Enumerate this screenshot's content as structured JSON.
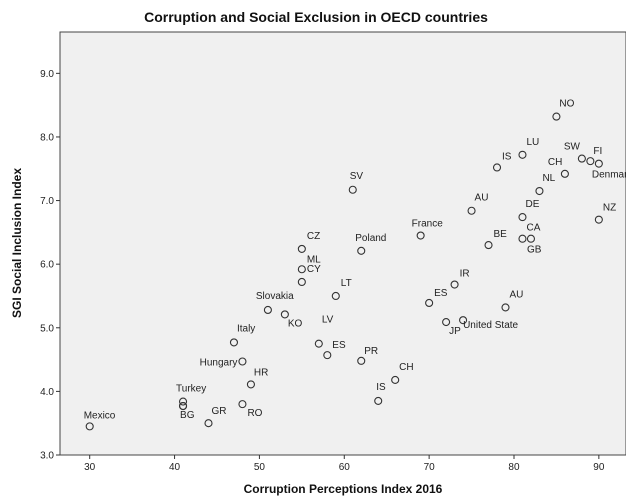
{
  "chart_data": {
    "type": "scatter",
    "title": "Corruption and Social Exclusion in OECD countries",
    "xlabel": "Corruption Perceptions Index  2016",
    "ylabel": "SGI Social Inclusion Index",
    "xlim": [
      26.5,
      93.2
    ],
    "ylim": [
      3.0,
      9.65
    ],
    "xticks": [
      30,
      40,
      50,
      60,
      70,
      80,
      90
    ],
    "yticks": [
      3.0,
      4.0,
      5.0,
      6.0,
      7.0,
      8.0,
      9.0
    ],
    "xtick_labels": [
      "30",
      "40",
      "50",
      "60",
      "70",
      "80",
      "90"
    ],
    "ytick_labels": [
      "3.0",
      "4.0",
      "5.0",
      "6.0",
      "7.0",
      "8.0",
      "9.0"
    ],
    "grid": false,
    "plot_background": "#f0f0f0",
    "marker_color": "#333333",
    "points": [
      {
        "label": "Mexico",
        "x": 30,
        "y": 3.45
      },
      {
        "label": "Turkey",
        "x": 41,
        "y": 3.84
      },
      {
        "label": "",
        "x": 41,
        "y": 3.77
      },
      {
        "label": "BG",
        "x": 41,
        "y": 3.77
      },
      {
        "label": "GR",
        "x": 44,
        "y": 3.5
      },
      {
        "label": "RO",
        "x": 48,
        "y": 3.8
      },
      {
        "label": "Hungary",
        "x": 48,
        "y": 4.47
      },
      {
        "label": "HR",
        "x": 49,
        "y": 4.11
      },
      {
        "label": "Italy",
        "x": 47,
        "y": 4.77
      },
      {
        "label": "Slovakia",
        "x": 51,
        "y": 5.28
      },
      {
        "label": "KO",
        "x": 53,
        "y": 5.21
      },
      {
        "label": "CZ",
        "x": 55,
        "y": 6.24
      },
      {
        "label": "ML",
        "x": 55,
        "y": 5.92
      },
      {
        "label": "CY",
        "x": 55,
        "y": 5.72
      },
      {
        "label": "LV",
        "x": 57,
        "y": 4.75
      },
      {
        "label": "ES",
        "x": 58,
        "y": 4.57
      },
      {
        "label": "LT",
        "x": 59,
        "y": 5.5
      },
      {
        "label": "SV",
        "x": 61,
        "y": 7.17
      },
      {
        "label": "Poland",
        "x": 62,
        "y": 6.21
      },
      {
        "label": "PR",
        "x": 62,
        "y": 4.48
      },
      {
        "label": "IS",
        "x": 64,
        "y": 3.85
      },
      {
        "label": "CH",
        "x": 66,
        "y": 4.18
      },
      {
        "label": "France",
        "x": 69,
        "y": 6.45
      },
      {
        "label": "ES",
        "x": 70,
        "y": 5.39
      },
      {
        "label": "JP",
        "x": 72,
        "y": 5.09
      },
      {
        "label": "United State",
        "x": 74,
        "y": 5.12
      },
      {
        "label": "IR",
        "x": 73,
        "y": 5.68
      },
      {
        "label": "AU",
        "x": 75,
        "y": 6.84
      },
      {
        "label": "BE",
        "x": 77,
        "y": 6.3
      },
      {
        "label": "IS",
        "x": 78,
        "y": 7.52
      },
      {
        "label": "AU",
        "x": 79,
        "y": 5.32
      },
      {
        "label": "LU",
        "x": 81,
        "y": 7.72
      },
      {
        "label": "DE",
        "x": 81,
        "y": 6.74
      },
      {
        "label": "CA",
        "x": 81,
        "y": 6.4
      },
      {
        "label": "GB",
        "x": 82,
        "y": 6.4
      },
      {
        "label": "NL",
        "x": 83,
        "y": 7.15
      },
      {
        "label": "NO",
        "x": 85,
        "y": 8.32
      },
      {
        "label": "CH",
        "x": 86,
        "y": 7.42
      },
      {
        "label": "SW",
        "x": 88,
        "y": 7.66
      },
      {
        "label": "FI",
        "x": 89,
        "y": 7.62
      },
      {
        "label": "Denmark",
        "x": 90,
        "y": 7.58
      },
      {
        "label": "NZ",
        "x": 90,
        "y": 6.7
      }
    ]
  }
}
